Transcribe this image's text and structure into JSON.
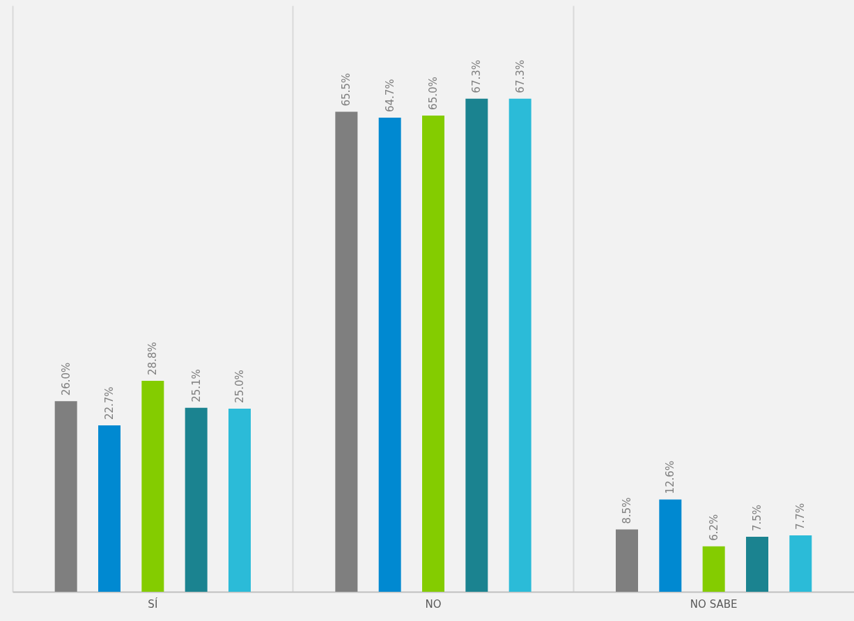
{
  "chart_data": {
    "type": "bar",
    "categories": [
      "SÍ",
      "NO",
      "NO SABE"
    ],
    "series": [
      {
        "color": "#7f7f7f",
        "values": [
          26.0,
          65.5,
          8.5
        ],
        "value_labels": [
          "26.0%",
          "65.5%",
          "8.5%"
        ]
      },
      {
        "color": "#0089d1",
        "values": [
          22.7,
          64.7,
          12.6
        ],
        "value_labels": [
          "22.7%",
          "64.7%",
          "12.6%"
        ]
      },
      {
        "color": "#84cc00",
        "values": [
          28.8,
          65.0,
          6.2
        ],
        "value_labels": [
          "28.8%",
          "65.0%",
          "6.2%"
        ]
      },
      {
        "color": "#1b8390",
        "values": [
          25.1,
          67.3,
          7.5
        ],
        "value_labels": [
          "25.1%",
          "67.3%",
          "7.5%"
        ]
      },
      {
        "color": "#2bbbd8",
        "values": [
          25.0,
          67.3,
          7.7
        ],
        "value_labels": [
          "25.0%",
          "67.3%",
          "7.7%"
        ]
      }
    ],
    "ylim": [
      0,
      80
    ],
    "grid": "x",
    "tick_labels": "x"
  }
}
